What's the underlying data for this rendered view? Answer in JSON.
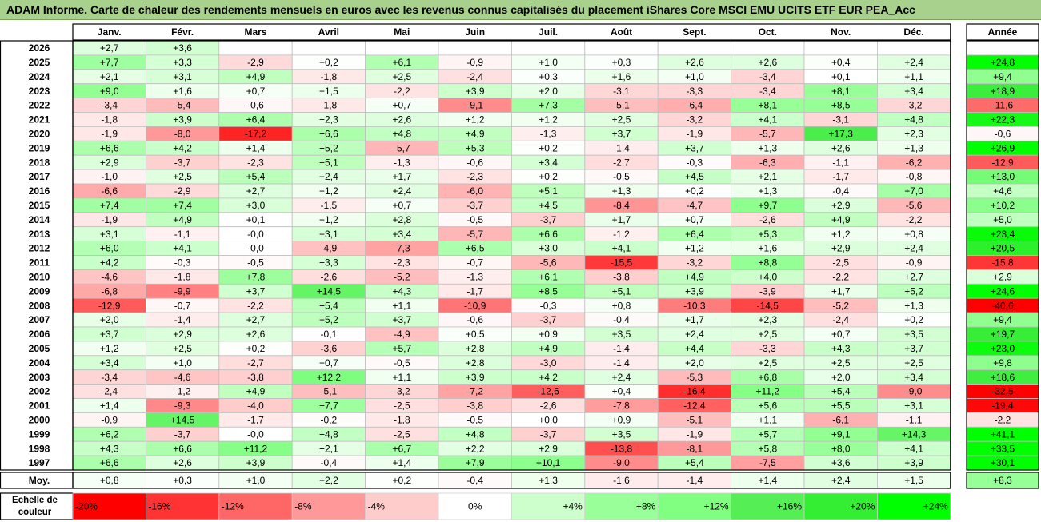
{
  "title": "ADAM Informe. Carte de chaleur des rendements mensuels en euros avec les revenus connus capitalisés du placement iShares Core MSCI EMU UCITS ETF EUR PEA_Acc",
  "chart_data": {
    "type": "heatmap",
    "months": [
      "Janv.",
      "Févr.",
      "Mars",
      "Avril",
      "Mai",
      "Juin",
      "Juil.",
      "Août",
      "Sept.",
      "Oct.",
      "Nov.",
      "Déc."
    ],
    "year_header": "Année",
    "average_label": "Moy.",
    "scale_label": "Echelle de couleur",
    "rows": [
      {
        "year": "2026",
        "values": [
          "+2,7",
          "+3,6",
          "",
          "",
          "",
          "",
          "",
          "",
          "",
          "",
          "",
          ""
        ],
        "annual": ""
      },
      {
        "year": "2025",
        "values": [
          "+7,7",
          "+3,3",
          "-2,9",
          "+0,2",
          "+6,1",
          "-0,9",
          "+1,0",
          "+0,3",
          "+2,6",
          "+2,6",
          "+0,4",
          "+2,4"
        ],
        "annual": "+24,8"
      },
      {
        "year": "2024",
        "values": [
          "+2,1",
          "+3,1",
          "+4,9",
          "-1,8",
          "+2,5",
          "-2,4",
          "+0,3",
          "+1,6",
          "+1,0",
          "-3,4",
          "+0,1",
          "+1,1"
        ],
        "annual": "+9,4"
      },
      {
        "year": "2023",
        "values": [
          "+9,0",
          "+1,6",
          "+0,7",
          "+1,5",
          "-2,2",
          "+3,9",
          "+2,0",
          "-3,1",
          "-3,3",
          "-3,4",
          "+8,1",
          "+3,4"
        ],
        "annual": "+18,9"
      },
      {
        "year": "2022",
        "values": [
          "-3,4",
          "-5,4",
          "-0,6",
          "-1,8",
          "+0,7",
          "-9,1",
          "+7,3",
          "-5,1",
          "-6,4",
          "+8,1",
          "+8,5",
          "-3,2"
        ],
        "annual": "-11,6"
      },
      {
        "year": "2021",
        "values": [
          "-1,8",
          "+3,9",
          "+6,4",
          "+2,3",
          "+2,6",
          "+1,2",
          "+1,2",
          "+2,5",
          "-3,2",
          "+4,1",
          "-3,1",
          "+4,8"
        ],
        "annual": "+22,3"
      },
      {
        "year": "2020",
        "values": [
          "-1,9",
          "-8,0",
          "-17,2",
          "+6,6",
          "+4,8",
          "+4,9",
          "-1,3",
          "+3,7",
          "-1,9",
          "-5,7",
          "+17,3",
          "+2,3"
        ],
        "annual": "-0,6"
      },
      {
        "year": "2019",
        "values": [
          "+6,6",
          "+4,2",
          "+1,4",
          "+5,2",
          "-5,7",
          "+5,3",
          "+0,2",
          "-1,4",
          "+3,7",
          "+1,3",
          "+2,6",
          "+1,3"
        ],
        "annual": "+26,9"
      },
      {
        "year": "2018",
        "values": [
          "+2,9",
          "-3,7",
          "-2,3",
          "+5,1",
          "-1,3",
          "-0,6",
          "+3,4",
          "-2,7",
          "-0,3",
          "-6,3",
          "-1,1",
          "-6,2"
        ],
        "annual": "-12,9"
      },
      {
        "year": "2017",
        "values": [
          "-1,0",
          "+2,5",
          "+5,4",
          "+2,4",
          "+1,7",
          "-2,3",
          "+0,2",
          "-0,5",
          "+4,5",
          "+2,1",
          "-1,7",
          "-0,8"
        ],
        "annual": "+13,0"
      },
      {
        "year": "2016",
        "values": [
          "-6,6",
          "-2,9",
          "+2,7",
          "+1,2",
          "+2,4",
          "-6,0",
          "+5,1",
          "+1,3",
          "+0,2",
          "+1,3",
          "-0,4",
          "+7,0"
        ],
        "annual": "+4,6"
      },
      {
        "year": "2015",
        "values": [
          "+7,4",
          "+7,4",
          "+3,0",
          "-1,5",
          "+0,7",
          "-3,7",
          "+4,5",
          "-8,4",
          "-4,7",
          "+9,7",
          "+2,9",
          "-5,6"
        ],
        "annual": "+10,2"
      },
      {
        "year": "2014",
        "values": [
          "-1,9",
          "+4,9",
          "+0,1",
          "+1,2",
          "+2,8",
          "-0,5",
          "-3,7",
          "+1,7",
          "+0,7",
          "-2,6",
          "+4,9",
          "-2,2"
        ],
        "annual": "+5,0"
      },
      {
        "year": "2013",
        "values": [
          "+3,1",
          "-1,1",
          "-0,0",
          "+3,1",
          "+3,4",
          "-5,7",
          "+6,6",
          "-1,2",
          "+6,4",
          "+5,3",
          "+1,2",
          "+0,8"
        ],
        "annual": "+23,4"
      },
      {
        "year": "2012",
        "values": [
          "+6,0",
          "+4,1",
          "-0,0",
          "-4,9",
          "-7,3",
          "+6,5",
          "+3,0",
          "+4,1",
          "+1,2",
          "+1,6",
          "+2,9",
          "+2,4"
        ],
        "annual": "+20,5"
      },
      {
        "year": "2011",
        "values": [
          "+4,2",
          "-0,3",
          "-0,5",
          "+3,3",
          "-2,3",
          "-0,7",
          "-5,6",
          "-15,5",
          "-3,2",
          "+8,8",
          "-2,5",
          "-0,9"
        ],
        "annual": "-15,8"
      },
      {
        "year": "2010",
        "values": [
          "-4,6",
          "-1,8",
          "+7,8",
          "-2,6",
          "-5,2",
          "-1,3",
          "+6,1",
          "-3,8",
          "+4,9",
          "+4,0",
          "-2,2",
          "+2,7"
        ],
        "annual": "+2,9"
      },
      {
        "year": "2009",
        "values": [
          "-6,8",
          "-9,9",
          "+3,7",
          "+14,5",
          "+4,3",
          "-1,7",
          "+8,5",
          "+5,1",
          "+3,9",
          "-3,9",
          "+1,7",
          "+5,2"
        ],
        "annual": "+24,6"
      },
      {
        "year": "2008",
        "values": [
          "-12,9",
          "-0,7",
          "-2,2",
          "+5,4",
          "+1,1",
          "-10,9",
          "-0,3",
          "+0,8",
          "-10,3",
          "-14,5",
          "-5,2",
          "+1,3"
        ],
        "annual": "-40,6"
      },
      {
        "year": "2007",
        "values": [
          "+2,0",
          "-1,4",
          "+2,7",
          "+5,2",
          "+3,7",
          "-0,6",
          "-3,7",
          "-0,4",
          "+1,7",
          "+2,3",
          "-2,4",
          "+0,2"
        ],
        "annual": "+9,4"
      },
      {
        "year": "2006",
        "values": [
          "+3,7",
          "+2,9",
          "+2,6",
          "-0,1",
          "-4,9",
          "+0,5",
          "+0,9",
          "+3,5",
          "+2,4",
          "+2,5",
          "+0,7",
          "+3,5"
        ],
        "annual": "+19,7"
      },
      {
        "year": "2005",
        "values": [
          "+1,2",
          "+2,5",
          "+0,2",
          "-3,6",
          "+5,7",
          "+2,8",
          "+4,9",
          "-1,4",
          "+4,4",
          "-3,3",
          "+4,3",
          "+3,7"
        ],
        "annual": "+23,0"
      },
      {
        "year": "2004",
        "values": [
          "+3,4",
          "+1,0",
          "-2,7",
          "+0,7",
          "-0,5",
          "+2,8",
          "-3,0",
          "-1,4",
          "+2,0",
          "+2,5",
          "+2,5",
          "+2,5"
        ],
        "annual": "+9,8"
      },
      {
        "year": "2003",
        "values": [
          "-3,4",
          "-4,6",
          "-3,8",
          "+12,2",
          "+1,1",
          "+3,9",
          "+4,2",
          "+2,4",
          "-5,3",
          "+6,8",
          "+2,0",
          "+3,4"
        ],
        "annual": "+18,6"
      },
      {
        "year": "2002",
        "values": [
          "-2,4",
          "-1,2",
          "+4,9",
          "-5,1",
          "-3,2",
          "-7,2",
          "-12,6",
          "+0,4",
          "-16,4",
          "+11,2",
          "+5,4",
          "-9,0"
        ],
        "annual": "-32,5"
      },
      {
        "year": "2001",
        "values": [
          "+1,4",
          "-9,3",
          "-4,0",
          "+7,7",
          "-2,5",
          "-3,8",
          "-2,6",
          "-7,8",
          "-12,4",
          "+5,6",
          "+5,5",
          "+3,1"
        ],
        "annual": "-19,4"
      },
      {
        "year": "2000",
        "values": [
          "-0,9",
          "+14,5",
          "-1,7",
          "-0,2",
          "-1,8",
          "-0,5",
          "+0,0",
          "+0,9",
          "-5,1",
          "+1,1",
          "-6,1",
          "-1,1"
        ],
        "annual": "-2,2"
      },
      {
        "year": "1999",
        "values": [
          "+6,2",
          "-3,7",
          "-0,0",
          "+4,8",
          "-2,5",
          "+4,8",
          "-3,7",
          "+3,5",
          "-1,9",
          "+5,7",
          "+9,1",
          "+14,3"
        ],
        "annual": "+41,1"
      },
      {
        "year": "1998",
        "values": [
          "+4,3",
          "+6,6",
          "+11,2",
          "+2,1",
          "+6,7",
          "+2,2",
          "+2,9",
          "-13,8",
          "-8,1",
          "+5,8",
          "+8,0",
          "+4,1"
        ],
        "annual": "+33,5"
      },
      {
        "year": "1997",
        "values": [
          "+6,6",
          "+2,6",
          "+3,9",
          "-0,4",
          "+1,4",
          "+7,9",
          "+10,1",
          "-9,0",
          "+5,4",
          "-7,5",
          "+3,6",
          "+3,9"
        ],
        "annual": "+30,1"
      }
    ],
    "average": {
      "values": [
        "+0,8",
        "+0,3",
        "+1,0",
        "+2,2",
        "+0,2",
        "-0,4",
        "+1,3",
        "-1,6",
        "-1,4",
        "+1,4",
        "+2,4",
        "+1,5"
      ],
      "annual": "+8,3"
    },
    "scale": [
      {
        "label": "-20%",
        "value": -20,
        "color": "#ff0000"
      },
      {
        "label": "-16%",
        "value": -16,
        "color": "#ff3333"
      },
      {
        "label": "-12%",
        "value": -12,
        "color": "#ff6666"
      },
      {
        "label": "-8%",
        "value": -8,
        "color": "#ff9999"
      },
      {
        "label": "-4%",
        "value": -4,
        "color": "#ffcccc"
      },
      {
        "label": "0%",
        "value": 0,
        "color": "#ffffff"
      },
      {
        "label": "+4%",
        "value": 4,
        "color": "#ccffcc"
      },
      {
        "label": "+8%",
        "value": 8,
        "color": "#99ff99"
      },
      {
        "label": "+12%",
        "value": 12,
        "color": "#80ff80"
      },
      {
        "label": "+16%",
        "value": 16,
        "color": "#55ee55"
      },
      {
        "label": "+20%",
        "value": 20,
        "color": "#33ee33"
      },
      {
        "label": "+24%",
        "value": 24,
        "color": "#00ff00"
      }
    ],
    "color_scale_range": [
      -20,
      24
    ]
  }
}
